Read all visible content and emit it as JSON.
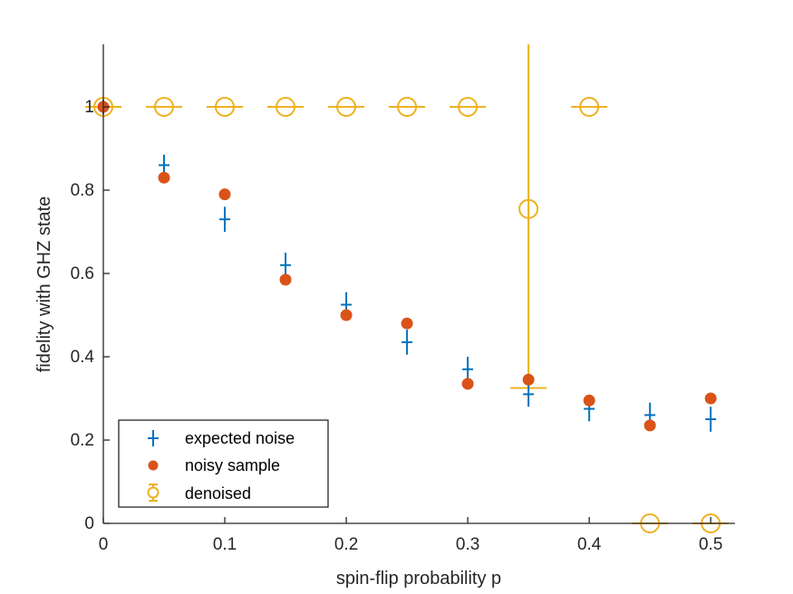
{
  "chart_data": {
    "type": "scatter",
    "xlabel": "spin-flip probability p",
    "ylabel": "fidelity with GHZ state",
    "xlim": [
      0,
      0.52
    ],
    "ylim": [
      0,
      1.15
    ],
    "xticks": [
      0,
      0.1,
      0.2,
      0.3,
      0.4,
      0.5
    ],
    "xtick_labels": [
      "0",
      "0.1",
      "0.2",
      "0.3",
      "0.4",
      "0.5"
    ],
    "yticks": [
      0,
      0.2,
      0.4,
      0.6,
      0.8,
      1
    ],
    "ytick_labels": [
      "0",
      "0.2",
      "0.4",
      "0.6",
      "0.8",
      "1"
    ],
    "grid": false,
    "legend_position": "bottom-left",
    "series": [
      {
        "name": "expected noise",
        "marker": "plus-errorbar",
        "color": "#0072BD",
        "points": [
          {
            "x": 0,
            "y": 1.0,
            "err": 0.0
          },
          {
            "x": 0.05,
            "y": 0.86,
            "err": 0.025
          },
          {
            "x": 0.1,
            "y": 0.73,
            "err": 0.03
          },
          {
            "x": 0.15,
            "y": 0.62,
            "err": 0.03
          },
          {
            "x": 0.2,
            "y": 0.525,
            "err": 0.03
          },
          {
            "x": 0.25,
            "y": 0.435,
            "err": 0.03
          },
          {
            "x": 0.3,
            "y": 0.37,
            "err": 0.03
          },
          {
            "x": 0.35,
            "y": 0.31,
            "err": 0.03
          },
          {
            "x": 0.4,
            "y": 0.275,
            "err": 0.03
          },
          {
            "x": 0.45,
            "y": 0.26,
            "err": 0.03
          },
          {
            "x": 0.5,
            "y": 0.25,
            "err": 0.03
          }
        ]
      },
      {
        "name": "noisy sample",
        "marker": "filled-circle",
        "color": "#D95319",
        "points": [
          {
            "x": 0,
            "y": 1.0
          },
          {
            "x": 0.05,
            "y": 0.83
          },
          {
            "x": 0.1,
            "y": 0.79
          },
          {
            "x": 0.15,
            "y": 0.585
          },
          {
            "x": 0.2,
            "y": 0.5
          },
          {
            "x": 0.25,
            "y": 0.48
          },
          {
            "x": 0.3,
            "y": 0.335
          },
          {
            "x": 0.35,
            "y": 0.345
          },
          {
            "x": 0.4,
            "y": 0.295
          },
          {
            "x": 0.45,
            "y": 0.235
          },
          {
            "x": 0.5,
            "y": 0.3
          }
        ]
      },
      {
        "name": "denoised",
        "marker": "open-circle-errorbar",
        "color": "#EDB120",
        "points": [
          {
            "x": 0,
            "y": 1.0,
            "lower": 1.0,
            "upper": 1.0
          },
          {
            "x": 0.05,
            "y": 1.0,
            "lower": 1.0,
            "upper": 1.0
          },
          {
            "x": 0.1,
            "y": 1.0,
            "lower": 1.0,
            "upper": 1.0
          },
          {
            "x": 0.15,
            "y": 1.0,
            "lower": 1.0,
            "upper": 1.0
          },
          {
            "x": 0.2,
            "y": 1.0,
            "lower": 1.0,
            "upper": 1.0
          },
          {
            "x": 0.25,
            "y": 1.0,
            "lower": 1.0,
            "upper": 1.0
          },
          {
            "x": 0.3,
            "y": 1.0,
            "lower": 1.0,
            "upper": 1.0
          },
          {
            "x": 0.35,
            "y": 0.755,
            "lower": 0.325,
            "upper": 1.15
          },
          {
            "x": 0.4,
            "y": 1.0,
            "lower": 1.0,
            "upper": 1.0
          },
          {
            "x": 0.45,
            "y": 0.0,
            "lower": 0.0,
            "upper": 0.0
          },
          {
            "x": 0.5,
            "y": 0.0,
            "lower": 0.0,
            "upper": 0.0
          }
        ]
      }
    ]
  }
}
